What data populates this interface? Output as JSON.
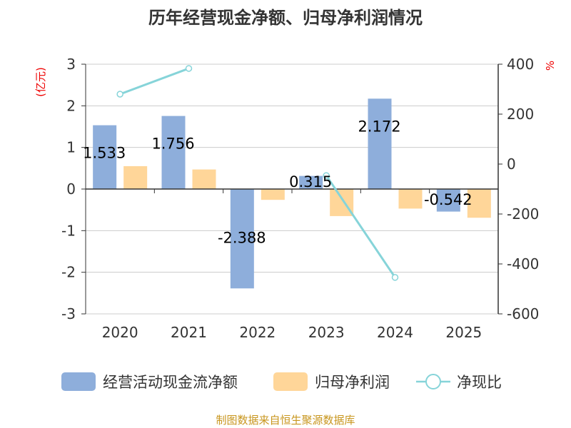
{
  "chart_data": {
    "type": "bar",
    "title": "历年经营现金净额、归母净利润情况",
    "categories": [
      "2020",
      "2021",
      "2022",
      "2023",
      "2024",
      "2025"
    ],
    "left_axis": {
      "label": "(亿元)",
      "ylim": [
        -3,
        3
      ],
      "ticks": [
        "3",
        "2",
        "1",
        "0",
        "-1",
        "-2",
        "-3"
      ]
    },
    "right_axis": {
      "label": "%",
      "ylim": [
        -600,
        400
      ],
      "ticks": [
        "400",
        "200",
        "0",
        "-200",
        "-400",
        "-600"
      ]
    },
    "series": [
      {
        "name": "经营活动现金流净额",
        "type": "bar",
        "axis": "left",
        "color": "#8eaedb",
        "values": [
          1.533,
          1.756,
          -2.388,
          0.315,
          2.172,
          -0.542
        ],
        "labels": [
          "1.533",
          "1.756",
          "-2.388",
          "0.315",
          "2.172",
          "-0.542"
        ]
      },
      {
        "name": "归母净利润",
        "type": "bar",
        "axis": "left",
        "color": "#ffd699",
        "values": [
          0.55,
          0.47,
          -0.26,
          -0.65,
          -0.47,
          -0.69
        ]
      },
      {
        "name": "净现比",
        "type": "line",
        "axis": "right",
        "color": "#86d4d9",
        "values": [
          280,
          383,
          null,
          -46,
          -454,
          null
        ]
      }
    ],
    "legend_position": "bottom",
    "grid": true
  },
  "footer": "制图数据来自恒生聚源数据库"
}
